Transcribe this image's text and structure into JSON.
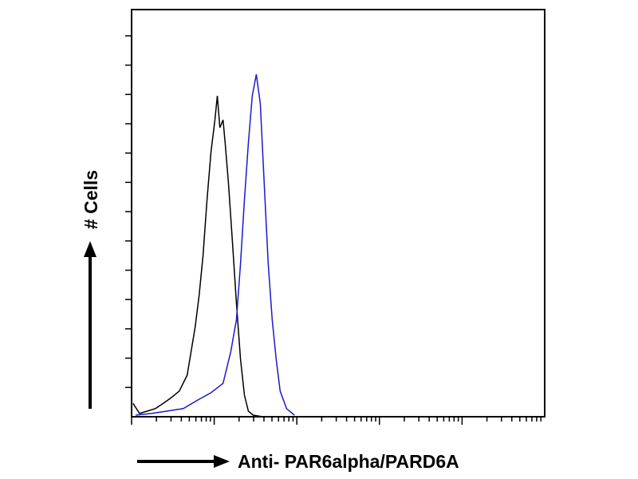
{
  "chart_data": {
    "type": "line",
    "xlabel": "Anti- PAR6alpha/PARD6A",
    "ylabel": "# Cells",
    "xscale": "log",
    "xlim": [
      1,
      100000
    ],
    "ylim": [
      0,
      100
    ],
    "series": [
      {
        "color": "#000000",
        "x": [
          1.04,
          1.25,
          1.56,
          1.94,
          2.42,
          3.03,
          3.78,
          4.71,
          5.26,
          5.88,
          6.57,
          7.33,
          8.19,
          9.15,
          10.2,
          10.9,
          11.7,
          12.8,
          13.6,
          14.9,
          16.6,
          18.6,
          20.8,
          23.2,
          25.9,
          29.6,
          38.6
        ],
        "values": [
          3.3,
          0.8,
          1.4,
          2.0,
          3.3,
          4.7,
          6.3,
          10.2,
          16.1,
          22.0,
          29.8,
          39.6,
          53.3,
          65.1,
          72.9,
          78.8,
          71.0,
          72.9,
          67.1,
          57.3,
          43.1,
          27.8,
          14.1,
          5.3,
          1.4,
          0.4,
          0
        ]
      },
      {
        "color": "#1a1acc",
        "x": [
          1.12,
          1.74,
          2.71,
          4.22,
          6.57,
          9.15,
          12.8,
          15.9,
          18.6,
          20.8,
          23.2,
          25.9,
          28.9,
          32.3,
          36.1,
          40.3,
          45.0,
          50.3,
          56.2,
          62.8,
          75.0,
          93.6
        ],
        "values": [
          0.4,
          0.8,
          1.4,
          2.0,
          4.3,
          5.9,
          8.2,
          16.1,
          23.9,
          37.6,
          53.3,
          67.1,
          78.8,
          84.1,
          76.9,
          57.3,
          37.6,
          23.9,
          14.1,
          6.3,
          2.0,
          0.4
        ]
      }
    ]
  }
}
